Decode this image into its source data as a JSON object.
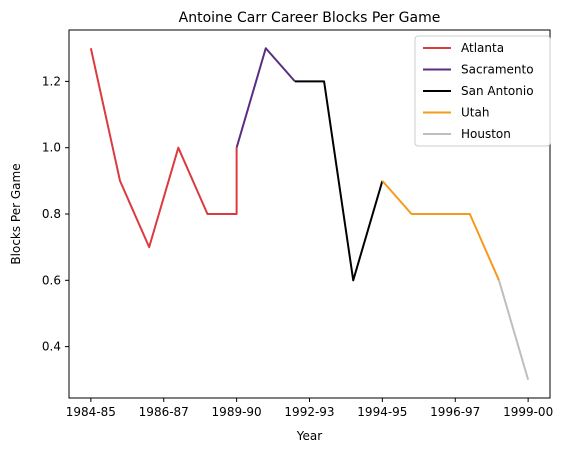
{
  "chart_data": {
    "type": "line",
    "title": "Antoine Carr Career Blocks Per Game",
    "xlabel": "Year",
    "ylabel": "Blocks Per Game",
    "x_tick_labels": [
      "1984-85",
      "1986-87",
      "1989-90",
      "1992-93",
      "1994-95",
      "1996-97",
      "1999-00"
    ],
    "y_ticks": [
      0.4,
      0.6,
      0.8,
      1.0,
      1.2
    ],
    "y_tick_labels": [
      "0.4",
      "0.6",
      "0.8",
      "1.0",
      "1.2"
    ],
    "ylim": [
      0.245,
      1.355
    ],
    "xlim": [
      -0.75,
      15.75
    ],
    "grid": false,
    "legend_position": "top-right",
    "series": [
      {
        "name": "Atlanta",
        "color": "#dc3a3f",
        "x": [
          0,
          1,
          2,
          3,
          4,
          5,
          5
        ],
        "y": [
          1.3,
          0.9,
          0.7,
          1.0,
          0.8,
          0.8,
          1.0
        ]
      },
      {
        "name": "Sacramento",
        "color": "#5a2d82",
        "x": [
          5,
          6,
          7
        ],
        "y": [
          1.0,
          1.3,
          1.2
        ]
      },
      {
        "name": "San Antonio",
        "color": "#000000",
        "x": [
          7,
          8,
          9,
          10
        ],
        "y": [
          1.2,
          1.2,
          0.6,
          0.9
        ]
      },
      {
        "name": "Utah",
        "color": "#f59a1a",
        "x": [
          10,
          11,
          12,
          13,
          14
        ],
        "y": [
          0.9,
          0.8,
          0.8,
          0.8,
          0.6
        ]
      },
      {
        "name": "Houston",
        "color": "#bebebe",
        "x": [
          14,
          15
        ],
        "y": [
          0.6,
          0.3
        ]
      }
    ]
  }
}
